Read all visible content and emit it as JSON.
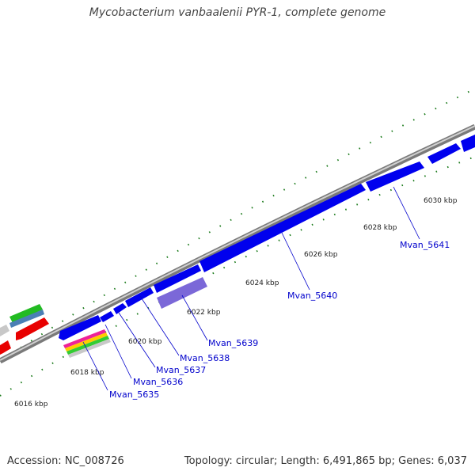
{
  "header": {
    "title": "Mycobacterium vanbaalenii PYR-1, complete genome"
  },
  "footer": {
    "accession": "Accession: NC_008726",
    "summary": "Topology: circular; Length: 6,491,865 bp; Genes: 6,037"
  },
  "kbp_labels": [
    "6016 kbp",
    "6018 kbp",
    "6020 kbp",
    "6022 kbp",
    "6024 kbp",
    "6026 kbp",
    "6028 kbp",
    "6030 kbp"
  ],
  "gene_labels": [
    "Mvan_5635",
    "Mvan_5636",
    "Mvan_5637",
    "Mvan_5638",
    "Mvan_5639",
    "Mvan_5640",
    "Mvan_5641"
  ],
  "colors": {
    "backbone": "#8c8c8c",
    "cds_forward": "#0000ee",
    "cds_reverse": "#ee0000",
    "highlight": "#7b68d8",
    "tick": "#1a7a1a",
    "label": "#0000cc"
  }
}
